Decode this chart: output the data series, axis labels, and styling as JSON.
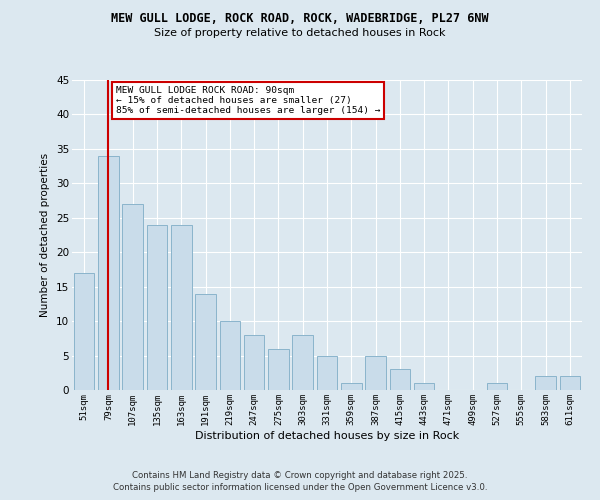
{
  "title_line1": "MEW GULL LODGE, ROCK ROAD, ROCK, WADEBRIDGE, PL27 6NW",
  "title_line2": "Size of property relative to detached houses in Rock",
  "categories": [
    "51sqm",
    "79sqm",
    "107sqm",
    "135sqm",
    "163sqm",
    "191sqm",
    "219sqm",
    "247sqm",
    "275sqm",
    "303sqm",
    "331sqm",
    "359sqm",
    "387sqm",
    "415sqm",
    "443sqm",
    "471sqm",
    "499sqm",
    "527sqm",
    "555sqm",
    "583sqm",
    "611sqm"
  ],
  "values": [
    17,
    34,
    27,
    24,
    24,
    14,
    10,
    8,
    6,
    8,
    5,
    1,
    5,
    3,
    1,
    0,
    0,
    1,
    0,
    2,
    2
  ],
  "bar_color": "#c9dcea",
  "bar_edge_color": "#8ab4cc",
  "ylim": [
    0,
    45
  ],
  "yticks": [
    0,
    5,
    10,
    15,
    20,
    25,
    30,
    35,
    40,
    45
  ],
  "ylabel": "Number of detached properties",
  "xlabel": "Distribution of detached houses by size in Rock",
  "vline_x": 1,
  "vline_color": "#cc0000",
  "annotation_text": "MEW GULL LODGE ROCK ROAD: 90sqm\n← 15% of detached houses are smaller (27)\n85% of semi-detached houses are larger (154) →",
  "annotation_box_color": "#ffffff",
  "annotation_box_edge_color": "#cc0000",
  "footer_line1": "Contains HM Land Registry data © Crown copyright and database right 2025.",
  "footer_line2": "Contains public sector information licensed under the Open Government Licence v3.0.",
  "bg_color": "#dce8f0",
  "grid_color": "#ffffff"
}
